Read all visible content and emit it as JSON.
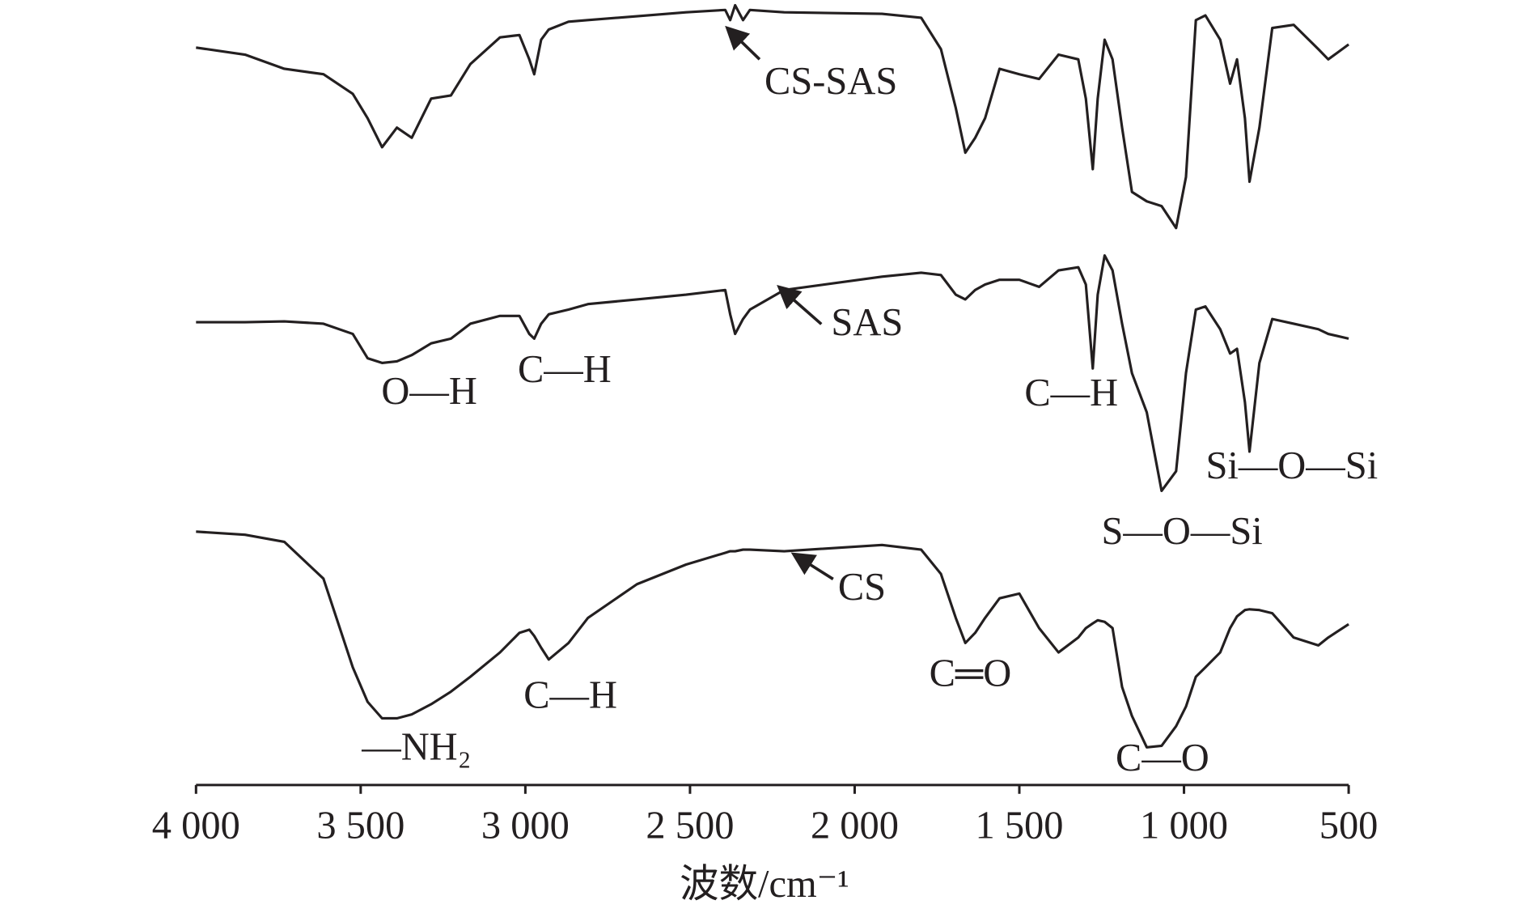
{
  "chart_data": {
    "type": "line",
    "x_label": "波数/cm⁻¹",
    "xlim": [
      4000,
      500
    ],
    "xticks": [
      {
        "value": 4000,
        "label": "4 000"
      },
      {
        "value": 3500,
        "label": "3 500"
      },
      {
        "value": 3000,
        "label": "3 000"
      },
      {
        "value": 2500,
        "label": "2 500"
      },
      {
        "value": 2000,
        "label": "2 000"
      },
      {
        "value": 1500,
        "label": "1 500"
      },
      {
        "value": 1000,
        "label": "1 000"
      },
      500
    ],
    "ylim": [
      0,
      100
    ],
    "color": "#231f20",
    "x": [
      4000,
      3851,
      3732,
      3613,
      3524,
      3479,
      3435,
      3390,
      3345,
      3286,
      3226,
      3167,
      3077,
      3018,
      2988,
      2973,
      2952,
      2929,
      2869,
      2810,
      2661,
      2512,
      2393,
      2378,
      2363,
      2339,
      2318,
      2214,
      1917,
      1798,
      1738,
      1693,
      1664,
      1634,
      1604,
      1560,
      1500,
      1440,
      1381,
      1321,
      1298,
      1277,
      1262,
      1241,
      1217,
      1188,
      1158,
      1113,
      1068,
      1024,
      994,
      964,
      935,
      890,
      860,
      839,
      815,
      801,
      771,
      732,
      667,
      592,
      562,
      500
    ],
    "series": [
      {
        "name": "CS-SAS",
        "values": [
          94,
          93.1,
          91.3,
          90.6,
          88.1,
          85,
          81.3,
          83.8,
          82.5,
          87.5,
          87.9,
          91.9,
          95.3,
          95.6,
          92.5,
          90.6,
          95,
          96.3,
          97.3,
          97.5,
          98,
          98.5,
          98.8,
          97.5,
          99.4,
          97.5,
          98.8,
          98.5,
          98.3,
          97.8,
          93.8,
          86.3,
          80.6,
          82.5,
          85,
          91.3,
          90.6,
          90,
          93.1,
          92.5,
          87.5,
          78.5,
          87.5,
          95,
          92.5,
          83.8,
          75.6,
          74.4,
          73.8,
          71,
          77.5,
          97.5,
          98.1,
          95,
          89.4,
          92.5,
          85,
          76.9,
          83.8,
          96.5,
          96.9,
          93.8,
          92.5,
          94.4
        ]
      },
      {
        "name": "SAS",
        "values": [
          59,
          59,
          59.1,
          58.8,
          57.5,
          54.4,
          53.8,
          54,
          54.8,
          56.3,
          56.9,
          58.8,
          59.8,
          59.8,
          57.5,
          56.9,
          58.8,
          60,
          60.6,
          61.3,
          61.9,
          62.5,
          63.1,
          60,
          57.5,
          59.4,
          60.6,
          63.1,
          64.8,
          65.3,
          65,
          62.5,
          61.9,
          63.1,
          63.8,
          64.4,
          64.4,
          63.5,
          65.6,
          66,
          63.8,
          53.1,
          62.5,
          67.5,
          65.6,
          58.8,
          52.5,
          47.5,
          37.5,
          40,
          52.5,
          60.6,
          61,
          58.1,
          55,
          55.6,
          48.8,
          42.5,
          53.8,
          59.4,
          58.8,
          58.1,
          57.5,
          56.9
        ]
      },
      {
        "name": "CS",
        "values": [
          32.3,
          31.9,
          31,
          26.3,
          15,
          10.6,
          8.5,
          8.5,
          9,
          10.3,
          11.9,
          13.8,
          16.9,
          19.4,
          19.8,
          19,
          17.5,
          16,
          18.1,
          21.3,
          25.6,
          28.1,
          29.6,
          29.8,
          29.8,
          30,
          30,
          29.8,
          30.6,
          30,
          26.9,
          21.3,
          18.1,
          19.4,
          21.3,
          23.8,
          24.4,
          20,
          16.9,
          18.8,
          20,
          20.6,
          21,
          20.8,
          20,
          12.5,
          8.8,
          4.8,
          5,
          7.5,
          10,
          13.8,
          15,
          16.9,
          20,
          21.5,
          22.3,
          22.4,
          22.3,
          21.9,
          18.8,
          17.8,
          18.8,
          20.5
        ]
      }
    ],
    "annotations": [
      "O—H",
      "C—H",
      "C—H",
      "Si—O—Si",
      "S—O—Si",
      "—NH₂",
      "C—H",
      "C═O",
      "C—O"
    ]
  }
}
